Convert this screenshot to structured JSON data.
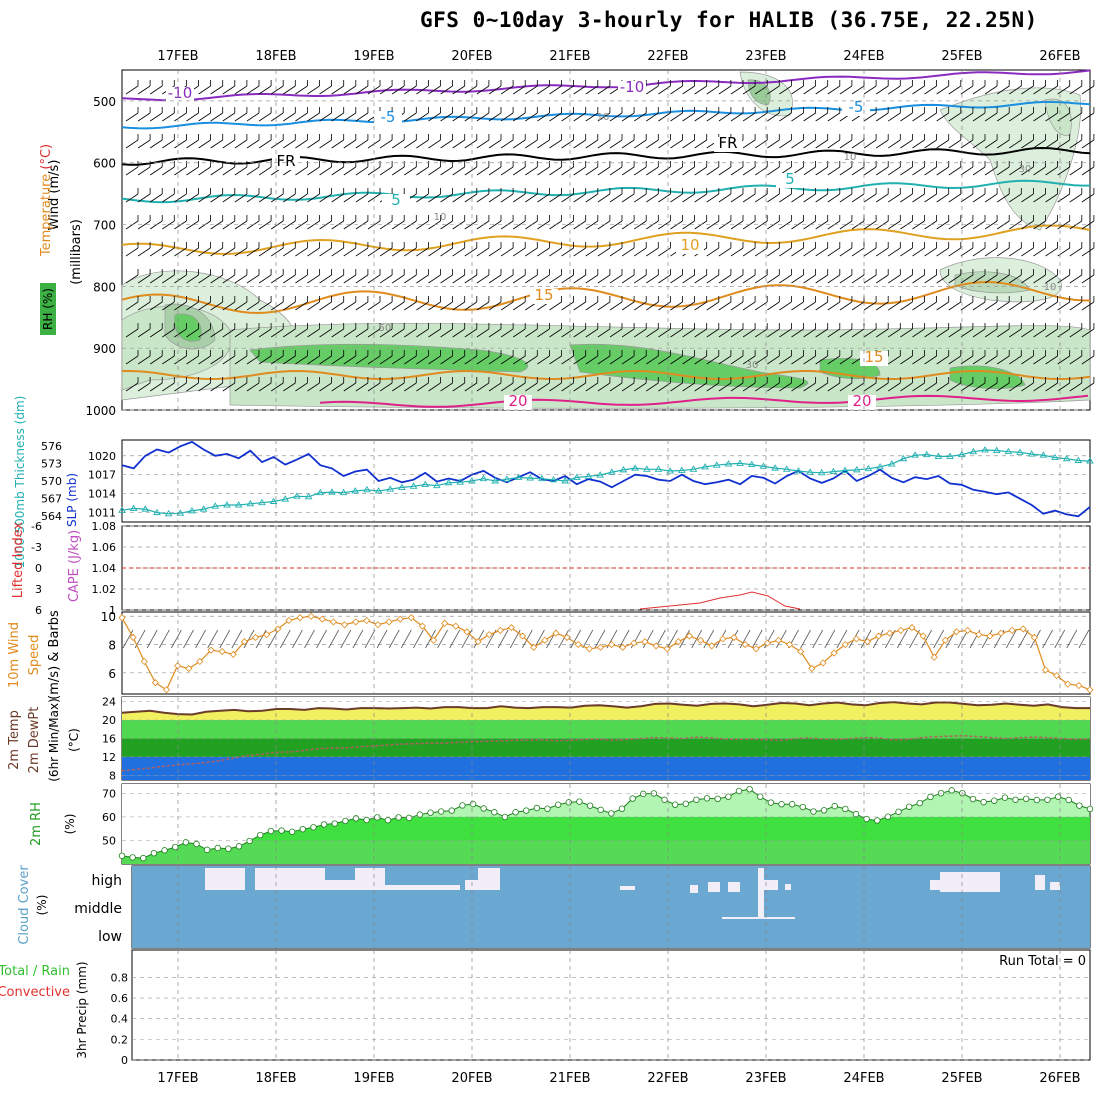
{
  "header": {
    "title": "GFS 0~10day 3-hourly for HALIB (36.75E, 22.25N)"
  },
  "dates": [
    "17FEB",
    "18FEB",
    "19FEB",
    "20FEB",
    "21FEB",
    "22FEB",
    "23FEB",
    "24FEB",
    "25FEB",
    "26FEB"
  ],
  "colors": {
    "rh_green": "#3cb043",
    "temp_orange": "#e08b1e",
    "wind_orange": "#e08b1e",
    "slp_blue": "#1030d0",
    "thick_cyan": "#20b0b0",
    "cape_magenta": "#c050c0",
    "li_red": "#e03030",
    "cloud_blue": "#6aa8d2",
    "rh2m_green": "#3ce03c"
  },
  "panels": {
    "upper": {
      "legend": {
        "rh": "RH (%)",
        "temp_prefix": "Temperature ",
        "temp_unit": "(°C)",
        "wind": "Wind (m/s)",
        "axis_label": "(millibars)"
      },
      "ylim": [
        450,
        1000
      ],
      "yticks": [
        "500",
        "600",
        "700",
        "800",
        "900",
        "1000"
      ],
      "isotherm_labels": [
        "-10",
        "-10",
        "-5",
        "-5",
        "FR",
        "FR",
        "5",
        "5",
        "10",
        "15",
        "15",
        "20",
        "20"
      ],
      "rh_labels": [
        "10",
        "10",
        "10",
        "30",
        "50",
        "30",
        "10"
      ]
    },
    "slp": {
      "label_thickness": "1000-500mb Thickness (dm)",
      "label_slp": "SLP (mb)",
      "thick_ticks": [
        "576",
        "573",
        "570",
        "567",
        "564"
      ],
      "slp_ticks": [
        "1020",
        "1017",
        "1014",
        "1011"
      ]
    },
    "cape": {
      "label_li": "Lifted Index",
      "label_cape": "CAPE (J/kg)",
      "li_ticks": [
        "-6",
        "-3",
        "0",
        "3",
        "6"
      ],
      "cape_ticks": [
        "1.08",
        "1.06",
        "1.04",
        "1.02",
        "1"
      ]
    },
    "wind10": {
      "label_a": "10m Wind",
      "label_b": "Speed",
      "label_c": "(m/s) & Barbs",
      "yticks": [
        "10",
        "8",
        "6"
      ]
    },
    "temp2m": {
      "label_a": "2m Temp",
      "label_b": "2m DewPt",
      "label_c": "(6hr Min/Max)",
      "label_unit": "(°C)",
      "yticks": [
        "24",
        "20",
        "16",
        "12",
        "8"
      ]
    },
    "rh2m": {
      "label": "2m RH",
      "unit": "(%)",
      "yticks": [
        "70",
        "60",
        "50"
      ]
    },
    "cloud": {
      "label": "Cloud Cover",
      "unit": "(%)",
      "levels": [
        "high",
        "middle",
        "low"
      ]
    },
    "precip": {
      "label_a": "Total / Rain",
      "label_b": "Convective",
      "label_c": "3hr Precip (mm)",
      "yticks": [
        "0.8",
        "0.6",
        "0.4",
        "0.2",
        "0"
      ],
      "run_total": "Run Total = 0"
    }
  },
  "chart_data": [
    {
      "type": "line",
      "title": "SLP (mb) / 1000-500mb Thickness (dm)",
      "x_unit": "3-hourly steps from 16FEB 12UTC",
      "series": [
        {
          "name": "SLP (mb)",
          "values": [
            1018.5,
            1018.0,
            1020.0,
            1021.0,
            1020.5,
            1021.5,
            1022.2,
            1021.0,
            1020.0,
            1020.3,
            1019.6,
            1020.8,
            1019.0,
            1019.8,
            1018.6,
            1019.4,
            1020.3,
            1018.5,
            1018.0,
            1016.8,
            1017.5,
            1017.8,
            1016.0,
            1016.5,
            1015.8,
            1016.2,
            1017.3,
            1015.9,
            1016.4,
            1016.0,
            1017.0,
            1017.6,
            1016.5,
            1015.8,
            1016.6,
            1017.4,
            1016.3,
            1016.0,
            1016.8,
            1015.5,
            1016.3,
            1015.9,
            1015.0,
            1016.0,
            1017.0,
            1016.8,
            1016.2,
            1016.0,
            1017.0,
            1016.0,
            1015.5,
            1015.8,
            1016.2,
            1015.5,
            1016.8,
            1016.5,
            1015.6,
            1016.8,
            1017.6,
            1016.4,
            1015.7,
            1016.4,
            1017.6,
            1016.0,
            1016.8,
            1017.8,
            1016.5,
            1015.8,
            1016.6,
            1016.3,
            1016.8,
            1015.6,
            1015.4,
            1014.6,
            1014.3,
            1013.9,
            1014.2,
            1013.2,
            1012.2,
            1010.8,
            1011.3,
            1010.7,
            1010.4,
            1011.9
          ]
        },
        {
          "name": "1000-500mb Thickness (dm)",
          "values": [
            565.0,
            565.3,
            565.2,
            564.6,
            564.4,
            564.5,
            564.9,
            565.2,
            565.7,
            565.9,
            565.9,
            566.1,
            566.3,
            566.5,
            566.9,
            567.4,
            567.3,
            568.0,
            568.1,
            568.0,
            568.3,
            568.5,
            568.3,
            568.6,
            568.9,
            569.1,
            569.4,
            569.2,
            569.7,
            569.8,
            570.0,
            570.4,
            570.0,
            570.3,
            570.6,
            570.5,
            570.4,
            570.2,
            570.0,
            570.6,
            570.8,
            571.0,
            571.5,
            571.9,
            572.2,
            572.0,
            572.0,
            571.7,
            571.8,
            572.0,
            572.4,
            572.7,
            572.9,
            573.0,
            572.8,
            572.5,
            572.2,
            572.0,
            571.7,
            571.5,
            571.4,
            571.6,
            571.8,
            571.9,
            572.1,
            572.4,
            572.9,
            573.8,
            574.4,
            574.5,
            574.2,
            574.2,
            574.5,
            575.0,
            575.3,
            575.2,
            575.0,
            574.9,
            574.6,
            574.4,
            574.0,
            573.8,
            573.5,
            573.4
          ]
        }
      ],
      "ylim_slp": [
        1010,
        1022
      ],
      "ylim_thickness": [
        563,
        577
      ]
    },
    {
      "type": "line",
      "title": "10m Wind Speed (m/s) & Barbs",
      "series": [
        {
          "name": "10m Wind Speed (m/s)",
          "values": [
            9.9,
            8.5,
            6.8,
            5.3,
            4.8,
            6.5,
            6.3,
            6.8,
            7.6,
            7.5,
            7.3,
            8.2,
            8.5,
            8.7,
            9.1,
            9.7,
            9.9,
            10.0,
            9.8,
            9.6,
            9.4,
            9.6,
            9.7,
            9.4,
            9.6,
            9.8,
            9.9,
            9.3,
            8.3,
            9.5,
            9.3,
            8.9,
            8.2,
            8.7,
            9.0,
            9.2,
            8.6,
            7.8,
            8.3,
            8.8,
            8.5,
            8.0,
            7.7,
            7.8,
            8.0,
            7.8,
            8.1,
            8.2,
            7.9,
            7.7,
            8.2,
            8.6,
            8.3,
            7.9,
            8.4,
            8.5,
            8.0,
            7.7,
            8.1,
            8.3,
            8.0,
            7.5,
            6.3,
            6.7,
            7.4,
            8.0,
            8.4,
            8.2,
            8.6,
            8.8,
            9.0,
            9.2,
            8.6,
            7.1,
            8.3,
            8.9,
            9.0,
            8.7,
            8.6,
            8.8,
            9.0,
            9.1,
            8.5,
            6.2,
            5.8,
            5.2,
            5.1,
            4.8
          ]
        }
      ],
      "ylim": [
        4.5,
        10.2
      ]
    },
    {
      "type": "area",
      "title": "2m Temp / 2m DewPt (°C)",
      "series": [
        {
          "name": "2m Temp",
          "values": [
            21.6,
            21.8,
            22.0,
            21.6,
            21.3,
            21.2,
            21.8,
            22.0,
            22.2,
            21.9,
            22.0,
            22.4,
            22.4,
            22.2,
            22.6,
            22.5,
            22.3,
            22.6,
            22.6,
            22.5,
            22.6,
            22.7,
            22.5,
            22.8,
            22.8,
            22.6,
            22.6,
            23.0,
            22.7,
            22.6,
            22.8,
            22.8,
            22.7,
            23.1,
            23.2,
            23.0,
            22.7,
            23.0,
            23.5,
            23.6,
            23.3,
            23.1,
            23.5,
            23.6,
            23.4,
            23.0,
            23.3,
            23.7,
            23.6,
            23.2,
            23.6,
            23.8,
            23.4,
            23.2,
            23.7,
            23.9,
            23.6,
            23.4,
            23.8,
            23.8,
            23.5,
            23.2,
            23.3,
            23.6,
            23.3,
            23.1,
            23.4,
            22.8,
            22.6,
            22.6
          ]
        },
        {
          "name": "2m DewPt",
          "values": [
            9.0,
            9.3,
            9.6,
            10.0,
            10.3,
            10.5,
            10.8,
            11.2,
            11.8,
            12.3,
            12.6,
            13.0,
            13.1,
            13.4,
            13.8,
            13.9,
            14.0,
            14.2,
            14.4,
            14.6,
            14.8,
            14.9,
            15.0,
            15.0,
            15.2,
            15.3,
            15.4,
            15.5,
            15.6,
            15.6,
            15.7,
            15.5,
            15.6,
            15.8,
            15.9,
            15.6,
            15.8,
            16.0,
            16.2,
            16.1,
            16.0,
            16.3,
            16.1,
            15.9,
            15.8,
            15.9,
            15.7,
            15.6,
            16.0,
            16.1,
            15.9,
            15.8,
            16.0,
            16.2,
            16.1,
            15.7,
            15.8,
            16.2,
            16.4,
            16.5,
            16.6,
            16.4,
            16.2,
            16.0,
            16.2,
            16.3,
            16.2,
            16.0,
            15.8,
            15.9
          ]
        }
      ],
      "ylim": [
        7,
        25
      ]
    },
    {
      "type": "area",
      "title": "2m RH (%)",
      "series": [
        {
          "name": "2m RH (%)",
          "values": [
            43.5,
            42.8,
            42.5,
            44.6,
            45.8,
            47.2,
            49.2,
            48.5,
            46.0,
            46.8,
            46.5,
            47.5,
            49.8,
            52.3,
            54.0,
            54.2,
            53.7,
            54.8,
            55.6,
            56.8,
            57.2,
            58.3,
            59.4,
            58.7,
            59.8,
            58.6,
            59.8,
            59.6,
            61.0,
            61.8,
            62.3,
            62.7,
            64.9,
            65.5,
            63.6,
            62.0,
            60.0,
            62.0,
            62.7,
            63.8,
            63.5,
            65.2,
            66.2,
            66.5,
            64.8,
            63.0,
            61.5,
            63.5,
            67.8,
            69.8,
            70.0,
            67.3,
            65.2,
            65.6,
            67.3,
            67.9,
            67.7,
            68.6,
            71.0,
            71.8,
            68.6,
            66.1,
            65.4,
            65.4,
            64.2,
            62.3,
            62.8,
            64.6,
            63.4,
            61.2,
            59.1,
            58.5,
            60.1,
            62.2,
            64.3,
            65.9,
            68.5,
            70.1,
            71.3,
            70.1,
            67.6,
            66.3,
            66.9,
            68.2,
            67.3,
            67.7,
            67.2,
            67.3,
            68.6,
            67.2,
            64.8,
            63.4
          ]
        }
      ],
      "ylim": [
        40,
        74
      ]
    },
    {
      "type": "bar",
      "title": "3hr Precip (mm)",
      "values": [],
      "ylim": [
        0,
        1
      ]
    }
  ]
}
